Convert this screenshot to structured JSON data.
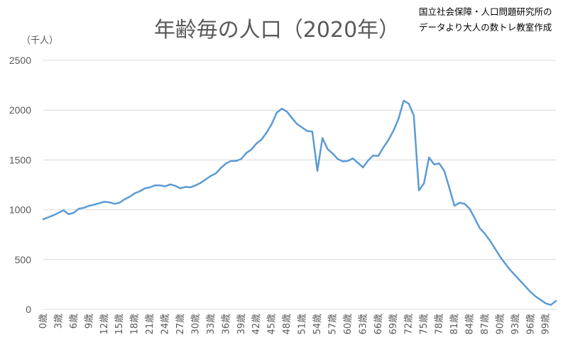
{
  "chart_data": {
    "type": "line",
    "title": "年齢毎の人口（2020年）",
    "source_lines": [
      "国立社会保障・人口問題研究所の",
      "データより大人の数トレ教室作成"
    ],
    "ylabel": "（千人）",
    "ylim": [
      0,
      2500
    ],
    "yticks": [
      0,
      500,
      1000,
      1500,
      2000,
      2500
    ],
    "grid": true,
    "legend": "none",
    "color": "#5b9bd5",
    "x_labels": [
      "0歳",
      "3歳",
      "6歳",
      "9歳",
      "12歳",
      "15歳",
      "18歳",
      "21歳",
      "24歳",
      "27歳",
      "30歳",
      "33歳",
      "36歳",
      "39歳",
      "42歳",
      "45歳",
      "48歳",
      "51歳",
      "54歳",
      "57歳",
      "60歳",
      "63歳",
      "66歳",
      "69歳",
      "72歳",
      "75歳",
      "78歳",
      "81歳",
      "84歳",
      "87歳",
      "90歳",
      "93歳",
      "96歳",
      "99歳"
    ],
    "x_label_step": 3,
    "series": [
      {
        "values": [
          905,
          925,
          945,
          970,
          995,
          955,
          970,
          1010,
          1020,
          1040,
          1050,
          1065,
          1080,
          1075,
          1060,
          1070,
          1105,
          1130,
          1165,
          1185,
          1215,
          1225,
          1245,
          1245,
          1235,
          1255,
          1240,
          1215,
          1230,
          1225,
          1245,
          1270,
          1305,
          1340,
          1365,
          1420,
          1465,
          1490,
          1490,
          1510,
          1570,
          1605,
          1665,
          1705,
          1775,
          1860,
          1975,
          2015,
          1985,
          1920,
          1860,
          1825,
          1790,
          1785,
          1390,
          1720,
          1610,
          1565,
          1510,
          1485,
          1490,
          1515,
          1470,
          1425,
          1495,
          1545,
          1540,
          1625,
          1700,
          1795,
          1915,
          2095,
          2065,
          1945,
          1195,
          1265,
          1525,
          1455,
          1465,
          1390,
          1220,
          1040,
          1070,
          1060,
          1010,
          915,
          815,
          760,
          690,
          610,
          530,
          460,
          395,
          340,
          285,
          230,
          175,
          130,
          95,
          60,
          45,
          85
        ]
      }
    ]
  }
}
